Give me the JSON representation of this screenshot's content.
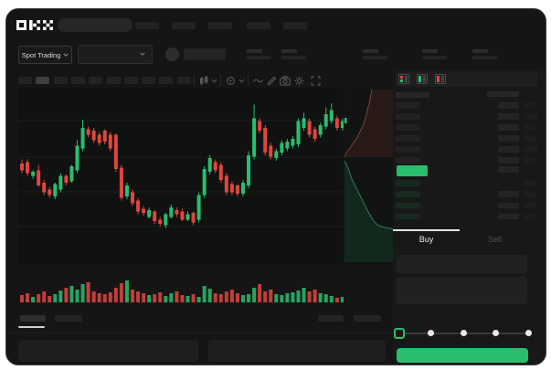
{
  "header": {
    "logo": "OKX",
    "search": {
      "placeholder": ""
    },
    "nav_placeholder_count": 5,
    "stat_group_count": 5
  },
  "market_bar": {
    "spot_trading_label": "Spot Trading",
    "pair_selector": {
      "selected": ""
    },
    "icons": [
      "chevron-down-icon",
      "chevron-down-icon",
      "user-avatar"
    ]
  },
  "toolbar": {
    "timeframe_count": 10,
    "selected_timeframe_index": 1,
    "icons": [
      "candle-type-icon",
      "chevron-down-icon",
      "indicators-icon",
      "chevron-down-icon",
      "line-wave-icon",
      "pencil-icon",
      "camera-icon",
      "gear-icon",
      "expand-icon"
    ]
  },
  "chart_data": {
    "type": "candlestick",
    "title": "",
    "note": "placeholder trading chart, no axis labels visible",
    "price_scale": "relative 0-100",
    "grid": true,
    "candles": [
      [
        54,
        49,
        57,
        47
      ],
      [
        55,
        47,
        57,
        45
      ],
      [
        45,
        48,
        49,
        43
      ],
      [
        49,
        38,
        53,
        37
      ],
      [
        40,
        33,
        42,
        31
      ],
      [
        35,
        31,
        37,
        29
      ],
      [
        30,
        39,
        40,
        28
      ],
      [
        35,
        45,
        47,
        33
      ],
      [
        45,
        40,
        46,
        38
      ],
      [
        41,
        52,
        53,
        40
      ],
      [
        49,
        67,
        71,
        47
      ],
      [
        65,
        80,
        86,
        63
      ],
      [
        79,
        75,
        81,
        73
      ],
      [
        78,
        71,
        80,
        69
      ],
      [
        75,
        69,
        77,
        67
      ],
      [
        78,
        70,
        79,
        68
      ],
      [
        75,
        65,
        77,
        63
      ],
      [
        75,
        50,
        76,
        48
      ],
      [
        51,
        29,
        53,
        27
      ],
      [
        30,
        38,
        40,
        28
      ],
      [
        33,
        25,
        35,
        23
      ],
      [
        27,
        19,
        29,
        17
      ],
      [
        21,
        18,
        23,
        16
      ],
      [
        15,
        20,
        22,
        14
      ],
      [
        19,
        12,
        20,
        10
      ],
      [
        13,
        10,
        15,
        8
      ],
      [
        9,
        17,
        18,
        7
      ],
      [
        15,
        22,
        24,
        14
      ],
      [
        20,
        17,
        22,
        15
      ],
      [
        19,
        13,
        21,
        12
      ],
      [
        13,
        17,
        19,
        12
      ],
      [
        18,
        11,
        19,
        9
      ],
      [
        13,
        31,
        33,
        11
      ],
      [
        31,
        50,
        52,
        29
      ],
      [
        48,
        58,
        60,
        46
      ],
      [
        55,
        49,
        57,
        47
      ],
      [
        53,
        42,
        55,
        40
      ],
      [
        45,
        33,
        47,
        31
      ],
      [
        39,
        33,
        41,
        31
      ],
      [
        38,
        32,
        39,
        30
      ],
      [
        32,
        40,
        42,
        30
      ],
      [
        38,
        60,
        63,
        36
      ],
      [
        59,
        87,
        97,
        57
      ],
      [
        85,
        78,
        87,
        76
      ],
      [
        80,
        62,
        82,
        60
      ],
      [
        67,
        59,
        69,
        57
      ],
      [
        58,
        63,
        65,
        56
      ],
      [
        62,
        69,
        71,
        60
      ],
      [
        65,
        70,
        72,
        63
      ],
      [
        67,
        72,
        74,
        65
      ],
      [
        68,
        85,
        87,
        66
      ],
      [
        80,
        87,
        91,
        78
      ],
      [
        85,
        75,
        87,
        73
      ],
      [
        79,
        72,
        81,
        70
      ],
      [
        75,
        82,
        84,
        73
      ],
      [
        81,
        90,
        95,
        79
      ],
      [
        85,
        93,
        98,
        83
      ],
      [
        87,
        80,
        89,
        78
      ],
      [
        80,
        85,
        87,
        78
      ]
    ],
    "volume": [
      8,
      10,
      6,
      9,
      12,
      7,
      9,
      13,
      16,
      18,
      14,
      20,
      22,
      12,
      10,
      9,
      11,
      16,
      21,
      24,
      14,
      12,
      10,
      8,
      9,
      11,
      7,
      10,
      12,
      8,
      7,
      9,
      6,
      18,
      15,
      10,
      9,
      12,
      14,
      10,
      8,
      9,
      16,
      20,
      12,
      14,
      9,
      8,
      10,
      11,
      13,
      16,
      12,
      14,
      10,
      9,
      7,
      5,
      6
    ],
    "colors": {
      "up": "#2abd6e",
      "down": "#df463f"
    }
  },
  "depth_chart": {
    "type": "area",
    "orientation": "vertical",
    "series": [
      {
        "name": "asks",
        "color": "#df463f"
      },
      {
        "name": "bids",
        "color": "#2abd6e"
      }
    ]
  },
  "orderbook": {
    "view_mode_icons": [
      "combined-book-icon",
      "bids-book-icon",
      "asks-book-icon"
    ],
    "column_headers": [
      "",
      ""
    ],
    "asks": [
      {
        "amt": 1
      },
      {
        "amt": 1
      },
      {
        "amt": 1
      },
      {
        "amt": 1
      },
      {
        "amt": 1
      },
      {
        "amt": 1
      }
    ],
    "last_price": {
      "highlight_color": "#2abd6e",
      "amt": 1
    },
    "bids": [
      {
        "amt": 0
      },
      {
        "amt": 1
      },
      {
        "amt": 1
      },
      {
        "amt": 1
      }
    ]
  },
  "trade_form": {
    "buy_tab": "Buy",
    "sell_tab": "Sell",
    "active_tab": "Buy",
    "fields": 2,
    "slider": {
      "stops": 5,
      "value_index": 0
    },
    "buy_button_label": "",
    "buy_button_color": "#2abd6e"
  },
  "bottom_bar": {
    "left_tab_count": 2,
    "active_left_tab_index": 0,
    "right_placeholder_count": 2,
    "panel_count": 2
  },
  "colors": {
    "window_bg": "#151515",
    "chart_bg": "#0e100f",
    "accent_green": "#2abd6e",
    "accent_red": "#df463f"
  }
}
